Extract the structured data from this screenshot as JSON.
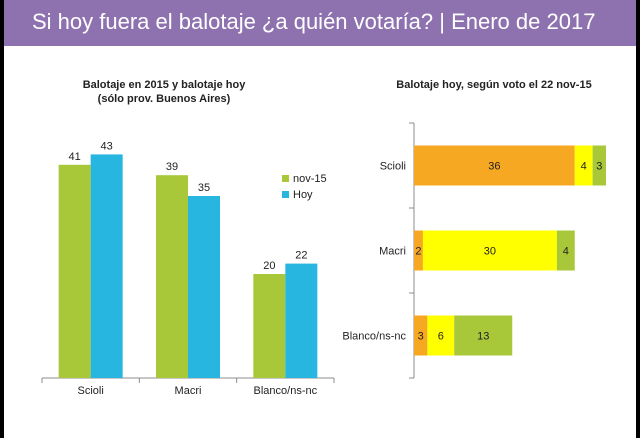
{
  "header": {
    "title": "Si hoy fuera el balotaje ¿a quién votaría? | Enero de 2017",
    "colors": {
      "banner": "#8e72b0"
    }
  },
  "chart_data": [
    {
      "type": "bar",
      "title": "Balotaje en 2015 y balotaje hoy",
      "subtitle": "(sólo prov. Buenos Aires)",
      "categories": [
        "Scioli",
        "Macri",
        "Blanco/ns-nc"
      ],
      "series": [
        {
          "name": "nov-15",
          "values": [
            41,
            39,
            20
          ],
          "color": "#a8c83a"
        },
        {
          "name": "Hoy",
          "values": [
            43,
            35,
            22
          ],
          "color": "#27b6e0"
        }
      ],
      "ylim": [
        0,
        50
      ],
      "grid": false,
      "legend": "right"
    },
    {
      "type": "bar",
      "orientation": "horizontal",
      "stacked": true,
      "title": "Balotaje hoy, según voto el 22 nov-15",
      "categories": [
        "Scioli",
        "Macri",
        "Blanco/ns-nc"
      ],
      "series": [
        {
          "values": [
            36,
            2,
            3
          ],
          "color": "#f7a823"
        },
        {
          "values": [
            4,
            30,
            6
          ],
          "color": "#ffff00"
        },
        {
          "values": [
            3,
            4,
            13
          ],
          "color": "#a8c83a"
        }
      ],
      "xlim": [
        0,
        43
      ],
      "grid": false
    }
  ]
}
